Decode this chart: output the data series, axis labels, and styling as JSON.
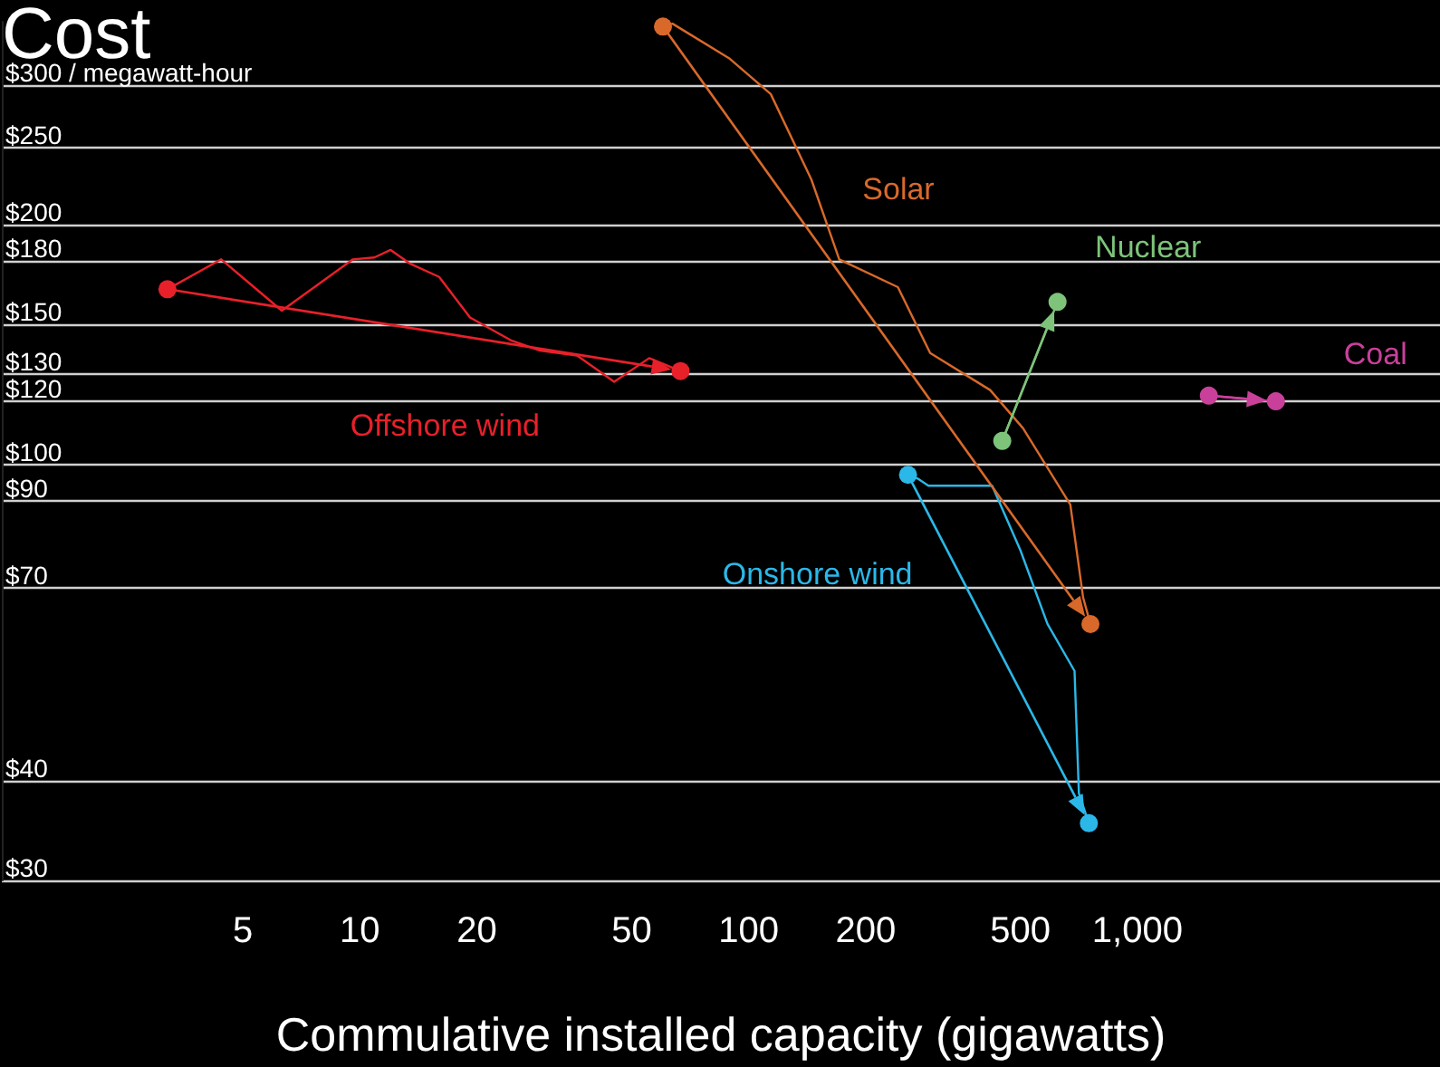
{
  "chart_data": {
    "type": "line",
    "title": "Cost",
    "xlabel": "Commulative installed capacity (gigawatts)",
    "log": "xy",
    "grid": "y",
    "legend": false,
    "marker": "none",
    "line_style": "solid",
    "xlim": [
      1.2,
      6000
    ],
    "xticks": [
      5,
      10,
      20,
      50,
      100,
      200,
      500,
      {
        "value": 1000,
        "label": "1,000"
      }
    ],
    "ylim": [
      30,
      360
    ],
    "yticks": [
      {
        "value": 30,
        "label": "$30"
      },
      {
        "value": 40,
        "label": "$40"
      },
      {
        "value": 70,
        "label": "$70"
      },
      {
        "value": 90,
        "label": "$90"
      },
      {
        "value": 100,
        "label": "$100"
      },
      {
        "value": 120,
        "label": "$120"
      },
      {
        "value": 130,
        "label": "$130"
      },
      {
        "value": 150,
        "label": "$150"
      },
      {
        "value": 180,
        "label": "$180"
      },
      {
        "value": 200,
        "label": "$200"
      },
      {
        "value": 250,
        "label": "$250"
      },
      {
        "value": 300,
        "label": "$300 / megawatt-hour"
      }
    ],
    "series": [
      {
        "name": "Offshore wind",
        "color": "#e8202a",
        "x": [
          3.2,
          4.4,
          6.3,
          9.6,
          10.9,
          12,
          13.4,
          16,
          19.2,
          24.6,
          29.1,
          36.2,
          45.1,
          55.5,
          66.8
        ],
        "values": [
          166,
          181,
          156,
          181,
          182,
          186,
          179,
          172,
          153,
          143,
          139,
          137,
          127,
          136,
          131
        ]
      },
      {
        "name": "Solar",
        "color": "#d9692a",
        "x": [
          60.2,
          63.7,
          89,
          114,
          145,
          171,
          242,
          293,
          418,
          508,
          672,
          725,
          757
        ],
        "values": [
          355,
          358,
          324,
          292,
          228,
          181,
          167,
          138,
          124,
          111,
          89,
          68,
          63
        ]
      },
      {
        "name": "Nuclear",
        "color": "#7dc47a",
        "marker": "circle",
        "x": [
          449,
          623
        ],
        "values": [
          107,
          160
        ]
      },
      {
        "name": "Onshore wind",
        "color": "#2bb8e8",
        "x": [
          257,
          272,
          290,
          423,
          500,
          587,
          689,
          707,
          750
        ],
        "values": [
          97,
          96,
          94,
          94,
          78,
          63,
          55,
          38.6,
          35.4
        ]
      },
      {
        "name": "Coal",
        "color": "#c8409a",
        "marker": "circle",
        "x": [
          1526,
          2270
        ],
        "values": [
          122,
          120
        ]
      }
    ]
  }
}
